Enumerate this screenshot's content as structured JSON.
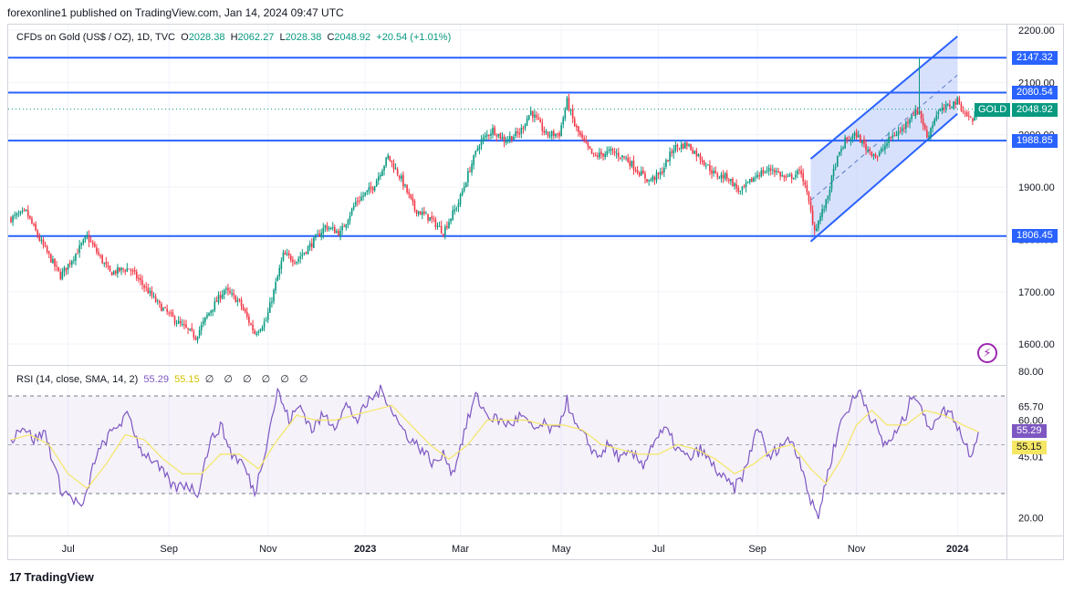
{
  "header": {
    "credit": "forexonline1 published on TradingView.com, Jan 14, 2024 09:47 UTC"
  },
  "legend": {
    "symbol": "CFDs on Gold (US$ / OZ), 1D, TVC",
    "open_label": "O",
    "open": "2028.38",
    "high_label": "H",
    "high": "2062.27",
    "low_label": "L",
    "low": "2028.38",
    "close_label": "C",
    "close": "2048.92",
    "change": "+20.54 (+1.01%)"
  },
  "rsi_legend": {
    "label": "RSI (14, close, SMA, 14, 2)",
    "rsi": "55.29",
    "sma": "55.15",
    "na": "∅ ∅ ∅ ∅ ∅ ∅"
  },
  "price_tags": {
    "r2147": "2147.32",
    "r2080": "2080.54",
    "gold_name": "GOLD",
    "gold_price": "2048.92",
    "s1988": "1988.85",
    "s1806": "1806.45",
    "rsi_value": "55.29",
    "rsi_sma": "55.15"
  },
  "colors": {
    "up": "#089981",
    "down": "#f23645",
    "level_line": "#2962ff",
    "rsi_line": "#7e57c2",
    "rsi_sma": "#f5e663",
    "channel_fill": "#c7d4fb"
  },
  "footer": {
    "logo_text": "TradingView"
  },
  "alert_icon": "lightning-alert-icon",
  "chart_data": [
    {
      "type": "candlestick",
      "title": "CFDs on Gold (US$ / OZ), 1D, TVC",
      "xlabel": "",
      "ylabel": "",
      "y_ticks": [
        "1600.00",
        "1700.00",
        "1800.00",
        "1900.00",
        "2000.00",
        "2100.00",
        "2200.00"
      ],
      "ylim": [
        1560,
        2220
      ],
      "x_ticks": [
        "Jul",
        "Sep",
        "Nov",
        "2023",
        "Mar",
        "May",
        "Jul",
        "Sep",
        "Nov",
        "2024"
      ],
      "x_tick_bold": [
        false,
        false,
        false,
        true,
        false,
        false,
        false,
        false,
        false,
        true
      ],
      "x_tick_index": [
        30,
        83,
        135,
        186,
        236,
        289,
        340,
        392,
        444,
        497
      ],
      "horizontal_levels": [
        2147.32,
        2080.54,
        1988.85,
        1806.45
      ],
      "last_close": 2048.92,
      "channel": {
        "lower_start": {
          "index": 420,
          "price": 1796
        },
        "lower_end": {
          "index": 497,
          "price": 2040
        },
        "upper_start": {
          "index": 420,
          "price": 1954
        },
        "upper_end": {
          "index": 497,
          "price": 2188
        }
      },
      "pivots": [
        [
          0,
          1840
        ],
        [
          8,
          1852
        ],
        [
          15,
          1800
        ],
        [
          26,
          1730
        ],
        [
          40,
          1805
        ],
        [
          52,
          1736
        ],
        [
          62,
          1745
        ],
        [
          70,
          1710
        ],
        [
          78,
          1673
        ],
        [
          88,
          1640
        ],
        [
          97,
          1614
        ],
        [
          104,
          1660
        ],
        [
          112,
          1704
        ],
        [
          120,
          1680
        ],
        [
          128,
          1621
        ],
        [
          134,
          1645
        ],
        [
          143,
          1770
        ],
        [
          150,
          1760
        ],
        [
          158,
          1792
        ],
        [
          165,
          1825
        ],
        [
          173,
          1812
        ],
        [
          181,
          1871
        ],
        [
          190,
          1900
        ],
        [
          198,
          1958
        ],
        [
          205,
          1915
        ],
        [
          212,
          1858
        ],
        [
          220,
          1840
        ],
        [
          227,
          1815
        ],
        [
          235,
          1870
        ],
        [
          241,
          1935
        ],
        [
          246,
          1984
        ],
        [
          253,
          2010
        ],
        [
          259,
          1990
        ],
        [
          267,
          2003
        ],
        [
          273,
          2045
        ],
        [
          281,
          2000
        ],
        [
          288,
          2002
        ],
        [
          292,
          2064
        ],
        [
          296,
          2018
        ],
        [
          300,
          1990
        ],
        [
          306,
          1958
        ],
        [
          315,
          1968
        ],
        [
          323,
          1955
        ],
        [
          330,
          1928
        ],
        [
          335,
          1912
        ],
        [
          341,
          1925
        ],
        [
          348,
          1975
        ],
        [
          355,
          1982
        ],
        [
          363,
          1952
        ],
        [
          370,
          1922
        ],
        [
          376,
          1920
        ],
        [
          383,
          1890
        ],
        [
          392,
          1925
        ],
        [
          400,
          1935
        ],
        [
          407,
          1915
        ],
        [
          415,
          1930
        ],
        [
          419,
          1870
        ],
        [
          422,
          1818
        ],
        [
          428,
          1870
        ],
        [
          433,
          1945
        ],
        [
          438,
          1988
        ],
        [
          444,
          2000
        ],
        [
          449,
          1975
        ],
        [
          455,
          1958
        ],
        [
          462,
          1995
        ],
        [
          468,
          2010
        ],
        [
          473,
          2040
        ],
        [
          477,
          2045
        ],
        [
          481,
          1995
        ],
        [
          486,
          2040
        ],
        [
          492,
          2054
        ],
        [
          497,
          2065
        ],
        [
          501,
          2040
        ],
        [
          505,
          2028
        ],
        [
          508,
          2049
        ]
      ],
      "annotated_spike": {
        "index": 477,
        "high": 2147.32
      }
    },
    {
      "type": "line",
      "title": "RSI (14, close, SMA, 14, 2)",
      "y_ticks": [
        "20.00",
        "45.01",
        "55.15",
        "55.29",
        "60.00",
        "65.70",
        "80.00"
      ],
      "ylim": [
        14,
        84
      ],
      "band": [
        30,
        70
      ],
      "middle": 50,
      "last_rsi": 55.29,
      "last_sma": 55.15,
      "series": [
        {
          "name": "RSI",
          "pivots": [
            [
              0,
              52
            ],
            [
              6,
              58
            ],
            [
              12,
              52
            ],
            [
              18,
              55
            ],
            [
              26,
              32
            ],
            [
              32,
              28
            ],
            [
              38,
              24
            ],
            [
              44,
              44
            ],
            [
              50,
              52
            ],
            [
              56,
              58
            ],
            [
              62,
              62
            ],
            [
              68,
              48
            ],
            [
              74,
              44
            ],
            [
              80,
              38
            ],
            [
              86,
              32
            ],
            [
              92,
              34
            ],
            [
              98,
              30
            ],
            [
              104,
              50
            ],
            [
              110,
              58
            ],
            [
              116,
              46
            ],
            [
              122,
              42
            ],
            [
              128,
              30
            ],
            [
              134,
              50
            ],
            [
              140,
              72
            ],
            [
              146,
              60
            ],
            [
              152,
              66
            ],
            [
              158,
              56
            ],
            [
              164,
              62
            ],
            [
              170,
              58
            ],
            [
              176,
              66
            ],
            [
              182,
              60
            ],
            [
              188,
              68
            ],
            [
              194,
              72
            ],
            [
              198,
              68
            ],
            [
              204,
              58
            ],
            [
              210,
              52
            ],
            [
              216,
              48
            ],
            [
              222,
              42
            ],
            [
              228,
              46
            ],
            [
              232,
              38
            ],
            [
              238,
              55
            ],
            [
              244,
              70
            ],
            [
              250,
              62
            ],
            [
              256,
              60
            ],
            [
              262,
              58
            ],
            [
              268,
              62
            ],
            [
              274,
              56
            ],
            [
              280,
              58
            ],
            [
              286,
              55
            ],
            [
              292,
              68
            ],
            [
              296,
              58
            ],
            [
              302,
              52
            ],
            [
              308,
              45
            ],
            [
              314,
              50
            ],
            [
              320,
              44
            ],
            [
              326,
              46
            ],
            [
              332,
              42
            ],
            [
              338,
              52
            ],
            [
              344,
              56
            ],
            [
              350,
              48
            ],
            [
              356,
              44
            ],
            [
              362,
              48
            ],
            [
              368,
              42
            ],
            [
              374,
              36
            ],
            [
              380,
              32
            ],
            [
              386,
              40
            ],
            [
              392,
              58
            ],
            [
              398,
              44
            ],
            [
              404,
              50
            ],
            [
              410,
              52
            ],
            [
              416,
              40
            ],
            [
              420,
              26
            ],
            [
              424,
              21
            ],
            [
              430,
              42
            ],
            [
              436,
              60
            ],
            [
              442,
              68
            ],
            [
              446,
              72
            ],
            [
              450,
              64
            ],
            [
              454,
              58
            ],
            [
              458,
              50
            ],
            [
              462,
              52
            ],
            [
              466,
              56
            ],
            [
              470,
              62
            ],
            [
              474,
              72
            ],
            [
              478,
              66
            ],
            [
              482,
              55
            ],
            [
              486,
              62
            ],
            [
              492,
              64
            ],
            [
              496,
              60
            ],
            [
              500,
              52
            ],
            [
              504,
              46
            ],
            [
              508,
              55.29
            ]
          ]
        },
        {
          "name": "SMA",
          "pivots": [
            [
              0,
              52
            ],
            [
              10,
              54
            ],
            [
              20,
              50
            ],
            [
              30,
              38
            ],
            [
              40,
              32
            ],
            [
              50,
              42
            ],
            [
              60,
              54
            ],
            [
              70,
              52
            ],
            [
              80,
              44
            ],
            [
              90,
              38
            ],
            [
              100,
              38
            ],
            [
              110,
              46
            ],
            [
              120,
              46
            ],
            [
              130,
              40
            ],
            [
              140,
              52
            ],
            [
              150,
              62
            ],
            [
              160,
              60
            ],
            [
              170,
              60
            ],
            [
              180,
              62
            ],
            [
              190,
              64
            ],
            [
              200,
              66
            ],
            [
              210,
              58
            ],
            [
              220,
              50
            ],
            [
              230,
              44
            ],
            [
              240,
              50
            ],
            [
              250,
              60
            ],
            [
              260,
              60
            ],
            [
              270,
              60
            ],
            [
              280,
              58
            ],
            [
              290,
              58
            ],
            [
              300,
              56
            ],
            [
              310,
              50
            ],
            [
              320,
              48
            ],
            [
              330,
              46
            ],
            [
              340,
              46
            ],
            [
              350,
              50
            ],
            [
              360,
              48
            ],
            [
              370,
              44
            ],
            [
              380,
              38
            ],
            [
              390,
              42
            ],
            [
              400,
              48
            ],
            [
              410,
              50
            ],
            [
              420,
              40
            ],
            [
              428,
              34
            ],
            [
              436,
              44
            ],
            [
              444,
              58
            ],
            [
              452,
              64
            ],
            [
              460,
              58
            ],
            [
              470,
              58
            ],
            [
              480,
              64
            ],
            [
              490,
              62
            ],
            [
              500,
              58
            ],
            [
              508,
              55.15
            ]
          ]
        }
      ]
    }
  ]
}
